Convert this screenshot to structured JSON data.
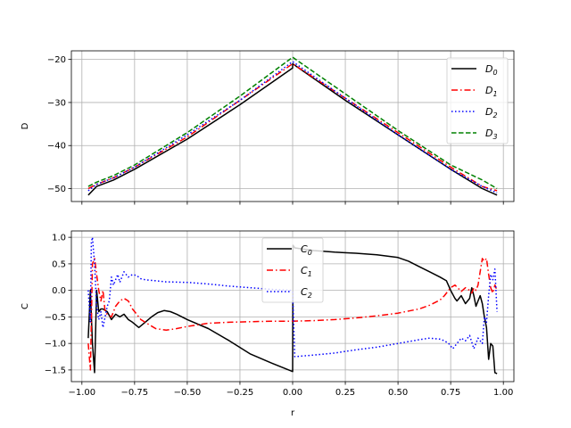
{
  "chart_data": [
    {
      "type": "line",
      "ylabel": "D",
      "xlabel": "",
      "xlim": [
        -1.05,
        1.05
      ],
      "ylim": [
        -53,
        -18
      ],
      "xticks": [
        -1.0,
        -0.75,
        -0.5,
        -0.25,
        0.0,
        0.25,
        0.5,
        0.75,
        1.0
      ],
      "xtick_labels_visible": false,
      "yticks": [
        -20,
        -30,
        -40,
        -50
      ],
      "ytick_labels": [
        "−20",
        "−30",
        "−40",
        "−50"
      ],
      "grid": true,
      "legend_position": "top-right",
      "series": [
        {
          "name": "D",
          "sub": "0",
          "color": "#000000",
          "style": "solid",
          "x": [
            -0.97,
            -0.93,
            -0.85,
            -0.75,
            -0.5,
            -0.25,
            0.0,
            0.0,
            0.25,
            0.5,
            0.75,
            0.9,
            0.97
          ],
          "y": [
            -51.5,
            -49.5,
            -48.0,
            -45.5,
            -38.5,
            -30.5,
            -22.0,
            -21.0,
            -29.5,
            -37.5,
            -45.5,
            -50.0,
            -51.5
          ]
        },
        {
          "name": "D",
          "sub": "1",
          "color": "#ff0000",
          "style": "dashdot",
          "x": [
            -0.97,
            -0.93,
            -0.85,
            -0.75,
            -0.5,
            -0.25,
            0.0,
            0.25,
            0.5,
            0.75,
            0.9,
            0.97
          ],
          "y": [
            -50.0,
            -49.0,
            -47.5,
            -45.0,
            -38.0,
            -29.5,
            -21.0,
            -29.0,
            -37.0,
            -45.0,
            -49.5,
            -50.5
          ]
        },
        {
          "name": "D",
          "sub": "2",
          "color": "#0000ff",
          "style": "dotted",
          "x": [
            -0.97,
            -0.93,
            -0.85,
            -0.75,
            -0.5,
            -0.25,
            0.0,
            0.25,
            0.5,
            0.75,
            0.9,
            0.97
          ],
          "y": [
            -50.5,
            -49.0,
            -47.5,
            -45.0,
            -37.5,
            -29.5,
            -20.5,
            -29.0,
            -37.5,
            -45.5,
            -49.5,
            -51.0
          ]
        },
        {
          "name": "D",
          "sub": "3",
          "color": "#008000",
          "style": "dashed",
          "x": [
            -0.97,
            -0.93,
            -0.85,
            -0.75,
            -0.5,
            -0.25,
            0.0,
            0.25,
            0.5,
            0.75,
            0.9,
            0.97
          ],
          "y": [
            -49.5,
            -48.5,
            -47.0,
            -44.5,
            -37.0,
            -28.5,
            -19.5,
            -28.0,
            -36.5,
            -44.5,
            -48.0,
            -50.0
          ]
        }
      ]
    },
    {
      "type": "line",
      "ylabel": "C",
      "xlabel": "r",
      "xlim": [
        -1.05,
        1.05
      ],
      "ylim": [
        -1.72,
        1.12
      ],
      "xticks": [
        -1.0,
        -0.75,
        -0.5,
        -0.25,
        0.0,
        0.25,
        0.5,
        0.75,
        1.0
      ],
      "xtick_labels": [
        "−1.00",
        "−0.75",
        "−0.50",
        "−0.25",
        "0.00",
        "0.25",
        "0.50",
        "0.75",
        "1.00"
      ],
      "yticks": [
        1.0,
        0.5,
        0.0,
        -0.5,
        -1.0,
        -1.5
      ],
      "ytick_labels": [
        "1.0",
        "0.5",
        "0.0",
        "−0.5",
        "−1.0",
        "−1.5"
      ],
      "grid": true,
      "legend_position": "upper center",
      "series": [
        {
          "name": "C",
          "sub": "0",
          "color": "#000000",
          "style": "solid",
          "x": [
            -0.97,
            -0.96,
            -0.95,
            -0.94,
            -0.93,
            -0.92,
            -0.91,
            -0.9,
            -0.88,
            -0.86,
            -0.84,
            -0.82,
            -0.8,
            -0.78,
            -0.76,
            -0.73,
            -0.7,
            -0.67,
            -0.64,
            -0.61,
            -0.58,
            -0.55,
            -0.5,
            -0.4,
            -0.3,
            -0.2,
            -0.1,
            0.0,
            0.001,
            0.0015,
            0.01,
            0.1,
            0.2,
            0.3,
            0.4,
            0.5,
            0.55,
            0.6,
            0.65,
            0.7,
            0.73,
            0.75,
            0.77,
            0.78,
            0.8,
            0.82,
            0.84,
            0.85,
            0.86,
            0.87,
            0.88,
            0.89,
            0.9,
            0.91,
            0.92,
            0.93,
            0.94,
            0.95,
            0.96,
            0.97
          ],
          "y": [
            -0.9,
            0.0,
            -1.0,
            -1.55,
            0.0,
            -0.4,
            -0.35,
            -0.35,
            -0.4,
            -0.55,
            -0.45,
            -0.5,
            -0.45,
            -0.55,
            -0.6,
            -0.7,
            -0.6,
            -0.5,
            -0.42,
            -0.38,
            -0.4,
            -0.45,
            -0.55,
            -0.72,
            -0.95,
            -1.2,
            -1.37,
            -1.53,
            -0.35,
            0.85,
            0.8,
            0.75,
            0.72,
            0.7,
            0.67,
            0.62,
            0.55,
            0.45,
            0.35,
            0.25,
            0.18,
            0.0,
            -0.15,
            -0.2,
            -0.1,
            -0.25,
            -0.15,
            0.05,
            -0.1,
            -0.3,
            -0.2,
            -0.1,
            -0.25,
            -0.5,
            -0.7,
            -1.3,
            -1.0,
            -1.05,
            -1.55,
            -1.57
          ]
        },
        {
          "name": "C",
          "sub": "1",
          "color": "#ff0000",
          "style": "dashdot",
          "x": [
            -0.97,
            -0.96,
            -0.955,
            -0.95,
            -0.94,
            -0.93,
            -0.92,
            -0.91,
            -0.9,
            -0.89,
            -0.88,
            -0.86,
            -0.84,
            -0.82,
            -0.8,
            -0.78,
            -0.76,
            -0.74,
            -0.72,
            -0.7,
            -0.65,
            -0.6,
            -0.55,
            -0.5,
            -0.4,
            -0.3,
            -0.2,
            -0.1,
            0.0,
            0.1,
            0.2,
            0.3,
            0.4,
            0.5,
            0.6,
            0.65,
            0.7,
            0.72,
            0.75,
            0.77,
            0.8,
            0.82,
            0.84,
            0.85,
            0.86,
            0.87,
            0.88,
            0.9,
            0.91,
            0.92,
            0.93,
            0.94,
            0.95,
            0.96,
            0.97
          ],
          "y": [
            -1.0,
            -1.5,
            -0.6,
            0.5,
            0.6,
            0.3,
            0.0,
            -0.2,
            0.0,
            -0.4,
            -0.45,
            -0.5,
            -0.3,
            -0.2,
            -0.15,
            -0.2,
            -0.35,
            -0.45,
            -0.55,
            -0.6,
            -0.72,
            -0.75,
            -0.72,
            -0.68,
            -0.62,
            -0.6,
            -0.59,
            -0.58,
            -0.58,
            -0.57,
            -0.55,
            -0.52,
            -0.48,
            -0.43,
            -0.35,
            -0.28,
            -0.18,
            -0.1,
            0.05,
            0.1,
            -0.02,
            0.05,
            0.0,
            -0.05,
            0.05,
            0.0,
            0.1,
            0.6,
            0.55,
            0.6,
            0.3,
            0.05,
            -0.05,
            0.1,
            0.0
          ]
        },
        {
          "name": "C",
          "sub": "2",
          "color": "#0000ff",
          "style": "dotted",
          "x": [
            -0.97,
            -0.96,
            -0.955,
            -0.95,
            -0.94,
            -0.93,
            -0.92,
            -0.91,
            -0.9,
            -0.89,
            -0.88,
            -0.87,
            -0.86,
            -0.85,
            -0.84,
            -0.83,
            -0.82,
            -0.8,
            -0.78,
            -0.76,
            -0.74,
            -0.72,
            -0.7,
            -0.6,
            -0.5,
            -0.4,
            -0.3,
            -0.2,
            -0.1,
            -0.01,
            0.0,
            0.01,
            0.1,
            0.2,
            0.3,
            0.4,
            0.5,
            0.6,
            0.65,
            0.7,
            0.72,
            0.74,
            0.76,
            0.78,
            0.8,
            0.82,
            0.84,
            0.86,
            0.88,
            0.9,
            0.91,
            0.92,
            0.93,
            0.94,
            0.95,
            0.96,
            0.97
          ],
          "y": [
            0.0,
            -0.6,
            0.9,
            1.0,
            0.5,
            -0.3,
            -0.55,
            -0.4,
            -0.7,
            -0.5,
            -0.3,
            -0.2,
            0.25,
            0.1,
            0.2,
            0.3,
            0.15,
            0.35,
            0.25,
            0.3,
            0.28,
            0.22,
            0.2,
            0.16,
            0.15,
            0.12,
            0.08,
            0.05,
            0.02,
            0.0,
            -0.02,
            -1.25,
            -1.22,
            -1.18,
            -1.12,
            -1.07,
            -1.0,
            -0.93,
            -0.9,
            -0.92,
            -0.95,
            -1.0,
            -1.1,
            -1.0,
            -0.9,
            -0.95,
            -0.85,
            -1.1,
            -0.9,
            -1.0,
            -0.5,
            -0.6,
            -0.1,
            0.3,
            0.2,
            0.4,
            -0.4
          ]
        }
      ]
    }
  ]
}
